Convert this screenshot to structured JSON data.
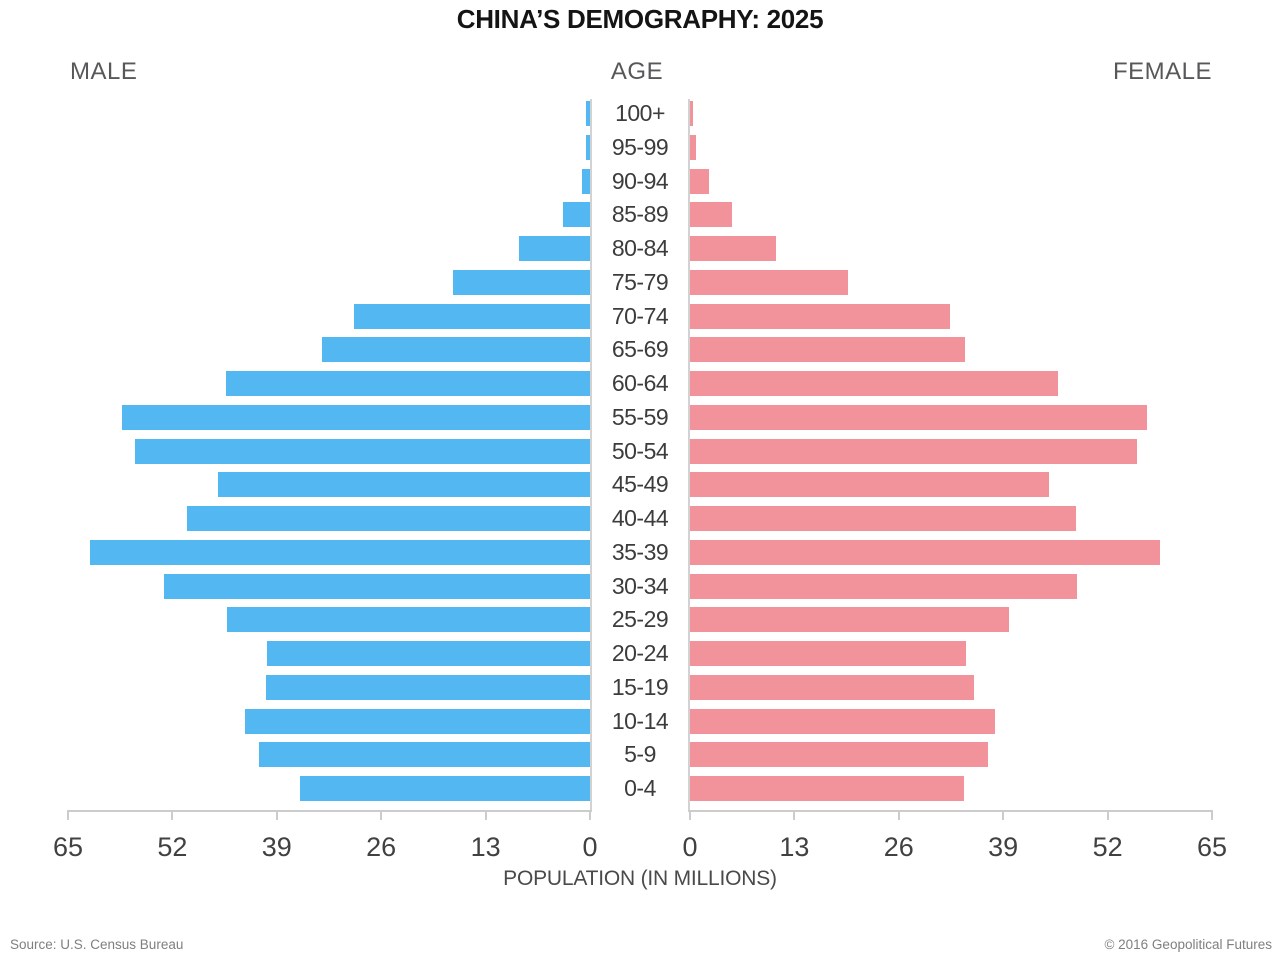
{
  "title": "CHINA’S DEMOGRAPHY: 2025",
  "header": {
    "male": "MALE",
    "age": "AGE",
    "female": "FEMALE"
  },
  "footer": {
    "source": "Source: U.S. Census Bureau",
    "copyright": "© 2016 Geopolitical Futures"
  },
  "chart_data": {
    "type": "bar",
    "subtype": "population-pyramid",
    "title": "CHINA’S DEMOGRAPHY: 2025",
    "xlabel": "POPULATION (IN MILLIONS)",
    "ylabel": "AGE",
    "categories": [
      "100+",
      "95-99",
      "90-94",
      "85-89",
      "80-84",
      "75-79",
      "70-74",
      "65-69",
      "60-64",
      "55-59",
      "50-54",
      "45-49",
      "40-44",
      "35-39",
      "30-34",
      "25-29",
      "20-24",
      "15-19",
      "10-14",
      "5-9",
      "0-4"
    ],
    "series": [
      {
        "name": "MALE",
        "side": "left",
        "color": "#53b7f2",
        "values": [
          0.5,
          0.5,
          1.0,
          3.3,
          8.8,
          17.0,
          29.4,
          33.4,
          45.3,
          58.3,
          56.7,
          46.3,
          50.2,
          62.2,
          53.1,
          45.2,
          40.2,
          40.4,
          42.9,
          41.2,
          36.1
        ]
      },
      {
        "name": "FEMALE",
        "side": "right",
        "color": "#f2929b",
        "values": [
          0.4,
          0.7,
          2.4,
          5.2,
          10.7,
          19.7,
          32.4,
          34.2,
          45.8,
          56.9,
          55.7,
          44.7,
          48.1,
          58.5,
          48.2,
          39.7,
          34.4,
          35.4,
          38.0,
          37.1,
          34.1
        ]
      }
    ],
    "x_ticks_left": [
      65,
      52,
      39,
      26,
      13,
      0
    ],
    "x_ticks_right": [
      0,
      13,
      26,
      39,
      52,
      65
    ],
    "xlim": [
      0,
      65
    ],
    "grid": false,
    "legend_position": "none"
  },
  "colors": {
    "male_bar": "#53b7f2",
    "female_bar": "#f2929b",
    "axis": "#cccccc",
    "tick_text": "#414141",
    "age_text": "#3c3c3c",
    "header_text": "#58585a",
    "title_text": "#141414",
    "footer_text": "#7f7f7f"
  }
}
